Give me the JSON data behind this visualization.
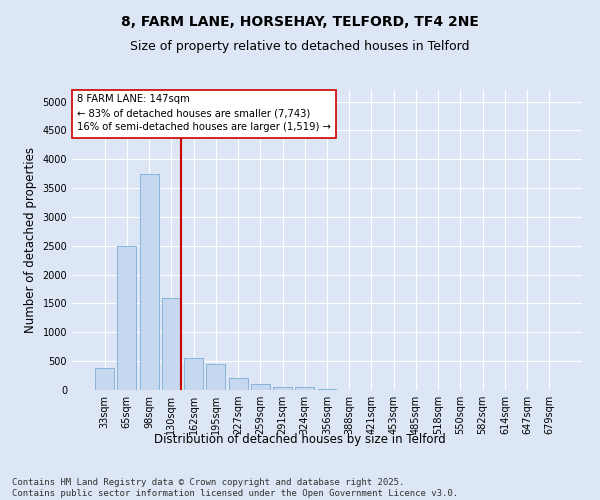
{
  "title1": "8, FARM LANE, HORSEHAY, TELFORD, TF4 2NE",
  "title2": "Size of property relative to detached houses in Telford",
  "xlabel": "Distribution of detached houses by size in Telford",
  "ylabel": "Number of detached properties",
  "categories": [
    "33sqm",
    "65sqm",
    "98sqm",
    "130sqm",
    "162sqm",
    "195sqm",
    "227sqm",
    "259sqm",
    "291sqm",
    "324sqm",
    "356sqm",
    "388sqm",
    "421sqm",
    "453sqm",
    "485sqm",
    "518sqm",
    "550sqm",
    "582sqm",
    "614sqm",
    "647sqm",
    "679sqm"
  ],
  "values": [
    380,
    2500,
    3750,
    1600,
    550,
    450,
    200,
    100,
    50,
    50,
    20,
    0,
    0,
    0,
    0,
    0,
    0,
    0,
    0,
    0,
    0
  ],
  "bar_color": "#c5d8ef",
  "bar_edge_color": "#7aadd4",
  "vline_color": "#cc0000",
  "annotation_text": "8 FARM LANE: 147sqm\n← 83% of detached houses are smaller (7,743)\n16% of semi-detached houses are larger (1,519) →",
  "annotation_box_color": "#ffffff",
  "annotation_box_edge_color": "#cc0000",
  "ylim": [
    0,
    5200
  ],
  "yticks": [
    0,
    500,
    1000,
    1500,
    2000,
    2500,
    3000,
    3500,
    4000,
    4500,
    5000
  ],
  "bg_color": "#dce6f5",
  "plot_bg_color": "#dce6f5",
  "footer1": "Contains HM Land Registry data © Crown copyright and database right 2025.",
  "footer2": "Contains public sector information licensed under the Open Government Licence v3.0.",
  "title_fontsize": 10,
  "subtitle_fontsize": 9,
  "tick_fontsize": 7,
  "label_fontsize": 8.5,
  "footer_fontsize": 6.5
}
